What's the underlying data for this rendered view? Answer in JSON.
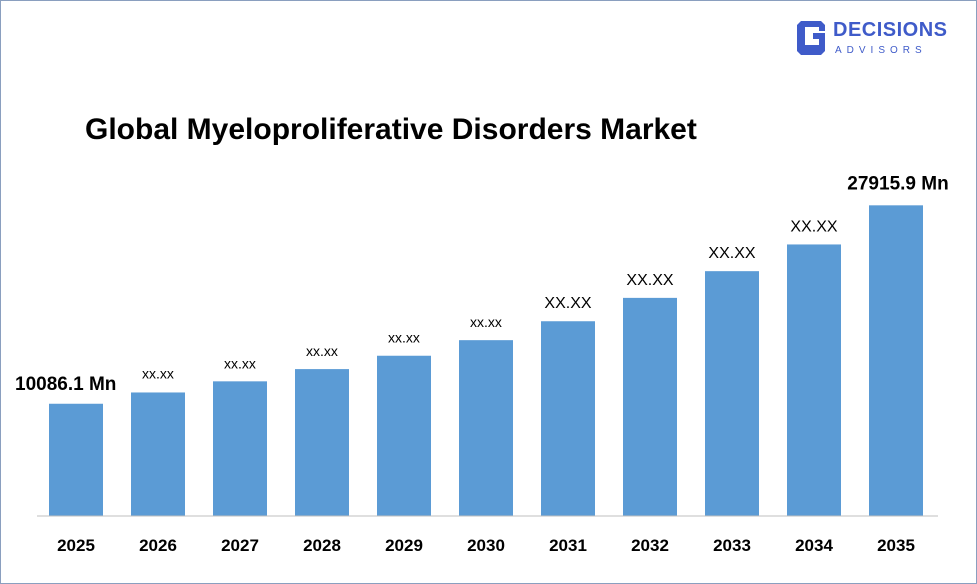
{
  "brand": {
    "name": "DECISIONS",
    "sub": "ADVISORS",
    "color": "#3f5bc9"
  },
  "chart_data": {
    "type": "bar",
    "title": "Global Myeloproliferative Disorders Market",
    "xlabel": "",
    "ylabel": "",
    "categories": [
      "2025",
      "2026",
      "2027",
      "2028",
      "2029",
      "2030",
      "2031",
      "2032",
      "2033",
      "2034",
      "2035"
    ],
    "values": [
      10086.1,
      11100,
      12100,
      13200,
      14400,
      15800,
      17500,
      19600,
      22000,
      24400,
      27915.9
    ],
    "data_labels": [
      "10086.1 Mn",
      "xx.xx",
      "xx.xx",
      "xx.xx",
      "xx.xx",
      "xx.xx",
      "XX.XX",
      "XX.XX",
      "XX.XX",
      "XX.XX",
      "27915.9 Mn"
    ],
    "ylim": [
      0,
      31000
    ],
    "grid": false,
    "legend": "none",
    "bar_color": "#5b9bd5"
  }
}
